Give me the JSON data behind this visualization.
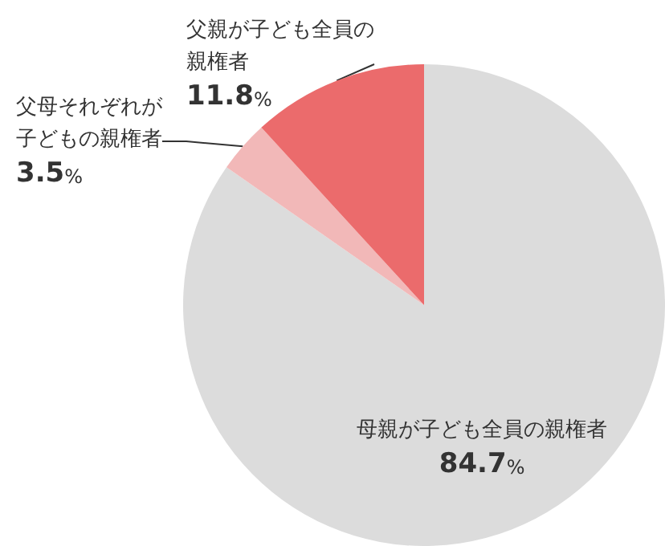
{
  "chart_data": {
    "type": "pie",
    "categories": [
      "母親が子ども全員の親権者",
      "父母それぞれが子どもの親権者",
      "父親が子ども全員の親権者"
    ],
    "values": [
      84.7,
      3.5,
      11.8
    ],
    "value_labels": [
      "84.7%",
      "3.5%",
      "11.8%"
    ],
    "colors": [
      "#dcdcdc",
      "#f2b8b8",
      "#eb6b6c"
    ],
    "data_labels": true
  }
}
